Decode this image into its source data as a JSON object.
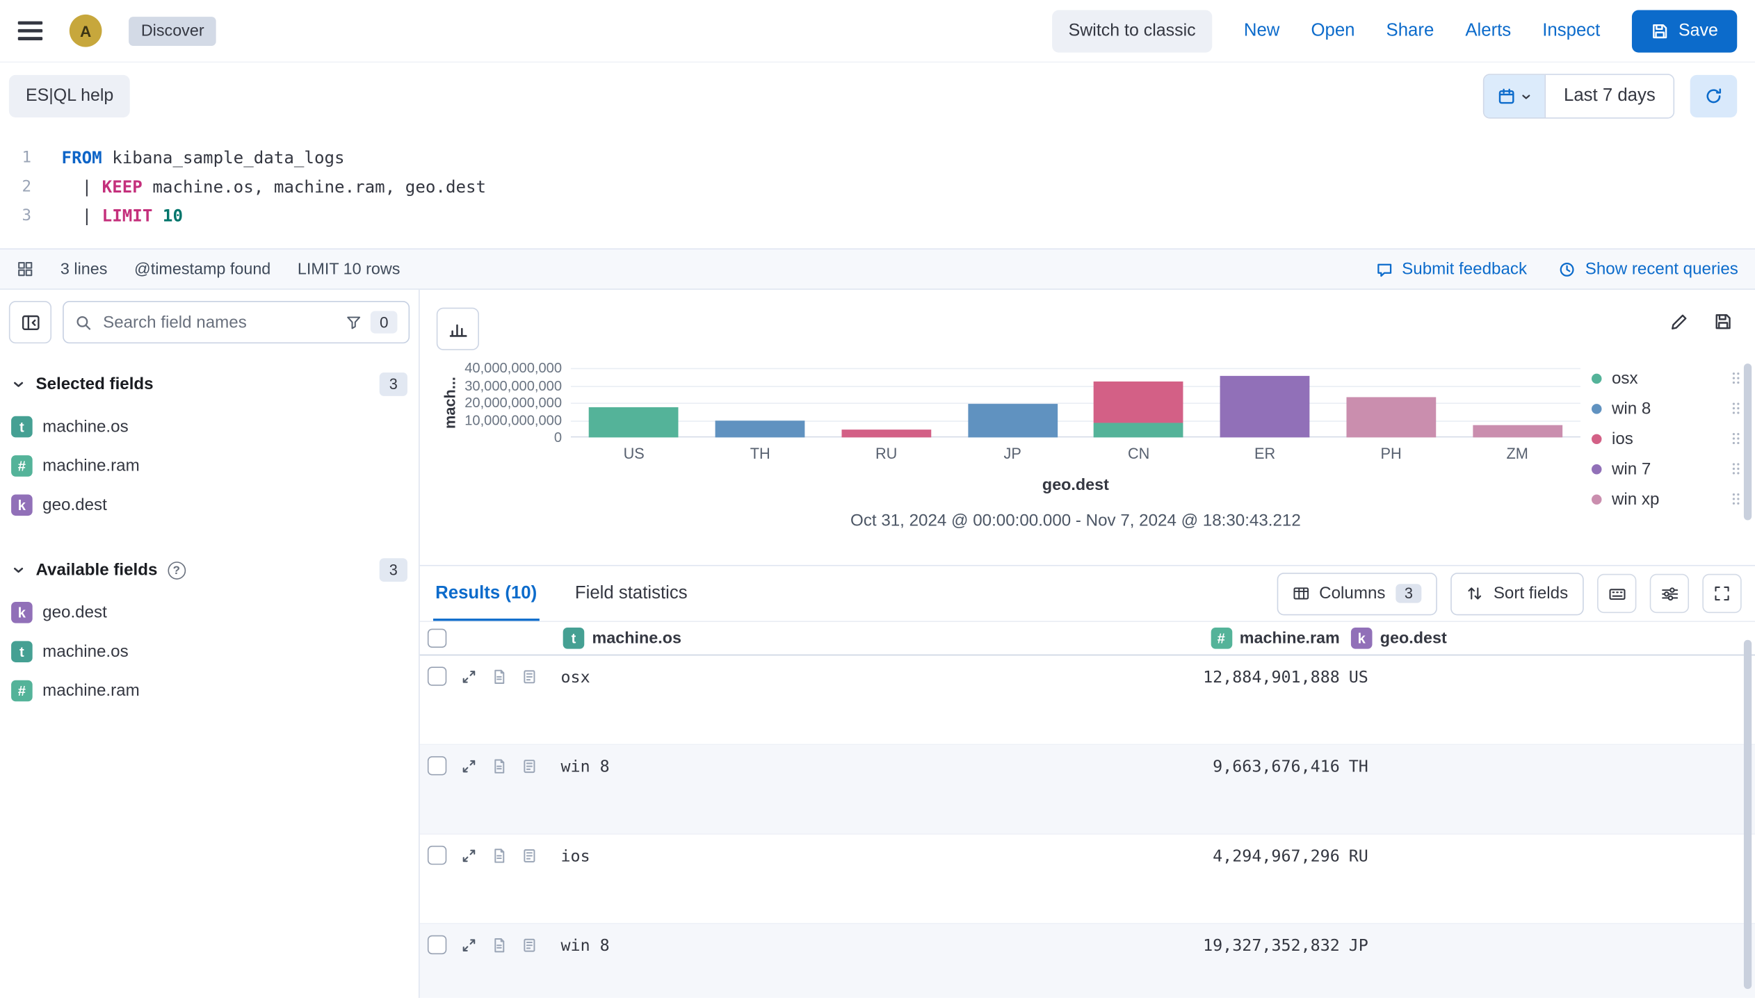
{
  "colors": {
    "primary": "#0c6bcb",
    "avatar": "#c7a73c",
    "tokens": {
      "text": "#45a093",
      "number": "#54b399",
      "keyword": "#9170b8"
    }
  },
  "header": {
    "avatar_initial": "A",
    "breadcrumb": "Discover",
    "switch_to_classic": "Switch to classic",
    "menu_items": [
      "New",
      "Open",
      "Share",
      "Alerts",
      "Inspect"
    ],
    "save_label": "Save"
  },
  "query_bar": {
    "esql_help_label": "ES|QL help",
    "time_range_label": "Last 7 days"
  },
  "editor": {
    "lines": [
      {
        "number": "1",
        "segments": [
          {
            "text": "FROM",
            "cls": "kw-blue"
          },
          {
            "text": " kibana_sample_data_logs",
            "cls": "plain"
          }
        ]
      },
      {
        "number": "2",
        "segments": [
          {
            "text": "  | ",
            "cls": "plain"
          },
          {
            "text": "KEEP",
            "cls": "kw-magenta"
          },
          {
            "text": " machine.os, machine.ram, geo.dest",
            "cls": "plain"
          }
        ]
      },
      {
        "number": "3",
        "segments": [
          {
            "text": "  | ",
            "cls": "plain"
          },
          {
            "text": "LIMIT",
            "cls": "kw-magenta"
          },
          {
            "text": " ",
            "cls": "plain"
          },
          {
            "text": "10",
            "cls": "num"
          }
        ]
      }
    ],
    "footer": {
      "lines_count": "3 lines",
      "timestamp_info": "@timestamp found",
      "limit_info": "LIMIT 10 rows",
      "submit_feedback": "Submit feedback",
      "show_recent_queries": "Show recent queries"
    }
  },
  "sidebar": {
    "search_placeholder": "Search field names",
    "filter_count": "0",
    "selected": {
      "label": "Selected fields",
      "count": "3",
      "fields": [
        {
          "type": "t",
          "name": "machine.os"
        },
        {
          "type": "#",
          "name": "machine.ram"
        },
        {
          "type": "k",
          "name": "geo.dest"
        }
      ]
    },
    "available": {
      "label": "Available fields",
      "count": "3",
      "fields": [
        {
          "type": "k",
          "name": "geo.dest"
        },
        {
          "type": "t",
          "name": "machine.os"
        },
        {
          "type": "#",
          "name": "machine.ram"
        }
      ]
    }
  },
  "chart_data": {
    "type": "bar",
    "stacked": true,
    "categories": [
      "US",
      "TH",
      "RU",
      "JP",
      "CN",
      "ER",
      "PH",
      "ZM"
    ],
    "series": [
      {
        "name": "osx",
        "color": "#54B399",
        "values": [
          17179869184,
          0,
          0,
          0,
          8589934592,
          0,
          0,
          0
        ]
      },
      {
        "name": "win 8",
        "color": "#6092C0",
        "values": [
          0,
          9663676416,
          0,
          19327352832,
          0,
          0,
          0,
          0
        ]
      },
      {
        "name": "ios",
        "color": "#D36086",
        "values": [
          0,
          0,
          4294967296,
          0,
          24000000000,
          0,
          0,
          0
        ]
      },
      {
        "name": "win 7",
        "color": "#9170B8",
        "values": [
          0,
          0,
          0,
          0,
          0,
          35400000000,
          0,
          0
        ]
      },
      {
        "name": "win xp",
        "color": "#CA8EAE",
        "values": [
          0,
          0,
          0,
          0,
          0,
          0,
          23500000000,
          7200000000
        ]
      }
    ],
    "xlabel": "geo.dest",
    "ylabel": "mach...",
    "ylim": [
      0,
      40000000000
    ],
    "yticks": [
      "40,000,000,000",
      "30,000,000,000",
      "20,000,000,000",
      "10,000,000,000",
      "0"
    ],
    "grid": "horizontal",
    "legend_position": "right",
    "time_range": "Oct 31, 2024 @ 00:00:00.000 - Nov 7, 2024 @ 18:30:43.212"
  },
  "results": {
    "tab_results": "Results (10)",
    "tab_field_stats": "Field statistics",
    "columns_label": "Columns",
    "columns_count": "3",
    "sort_label": "Sort fields",
    "table": {
      "headers": [
        {
          "type": "t",
          "name": "machine.os"
        },
        {
          "type": "#",
          "name": "machine.ram"
        },
        {
          "type": "k",
          "name": "geo.dest"
        }
      ],
      "rows": [
        {
          "machine_os": "osx",
          "machine_ram": "12,884,901,888",
          "geo_dest": "US"
        },
        {
          "machine_os": "win 8",
          "machine_ram": "9,663,676,416",
          "geo_dest": "TH"
        },
        {
          "machine_os": "ios",
          "machine_ram": "4,294,967,296",
          "geo_dest": "RU"
        },
        {
          "machine_os": "win 8",
          "machine_ram": "19,327,352,832",
          "geo_dest": "JP"
        }
      ]
    }
  }
}
